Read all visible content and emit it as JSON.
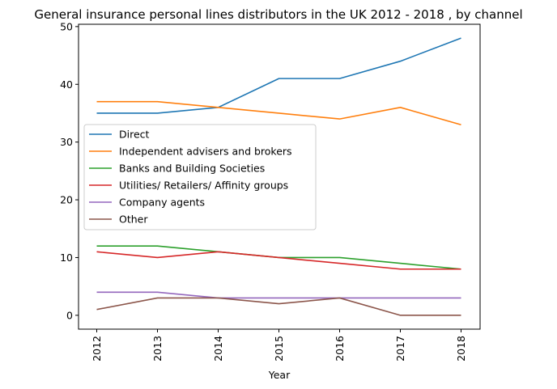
{
  "chart_data": {
    "type": "line",
    "title": "General insurance personal lines distributors in the UK 2012 - 2018 , by channel",
    "xlabel": "Year",
    "ylabel": "",
    "categories": [
      "2012",
      "2013",
      "2014",
      "2015",
      "2016",
      "2017",
      "2018"
    ],
    "ylim": [
      -2.4,
      50.4
    ],
    "yticks": [
      0,
      10,
      20,
      30,
      40,
      50
    ],
    "grid": false,
    "legend_position": "center-left",
    "series": [
      {
        "name": "Direct",
        "color": "#1f77b4",
        "values": [
          35,
          35,
          36,
          41,
          41,
          44,
          48
        ]
      },
      {
        "name": "Independent advisers and brokers",
        "color": "#ff7f0e",
        "values": [
          37,
          37,
          36,
          35,
          34,
          36,
          33
        ]
      },
      {
        "name": "Banks and Building Societies",
        "color": "#2ca02c",
        "values": [
          12,
          12,
          11,
          10,
          10,
          9,
          8
        ]
      },
      {
        "name": "Utilities/ Retailers/ Affinity groups",
        "color": "#d62728",
        "values": [
          11,
          10,
          11,
          10,
          9,
          8,
          8
        ]
      },
      {
        "name": "Company agents",
        "color": "#9467bd",
        "values": [
          4,
          4,
          3,
          3,
          3,
          3,
          3
        ]
      },
      {
        "name": "Other",
        "color": "#8c564b",
        "values": [
          1,
          3,
          3,
          2,
          3,
          0,
          0
        ]
      }
    ]
  }
}
